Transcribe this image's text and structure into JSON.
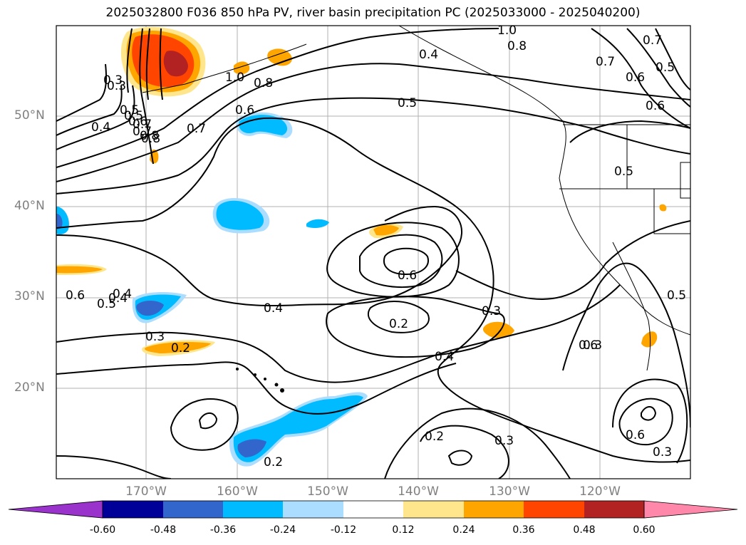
{
  "title": "2025032800 F036 850 hPa PV, river basin precipitation PC (2025033000 - 2025040200)",
  "lat_labels": [
    "50°N",
    "40°N",
    "30°N",
    "20°N"
  ],
  "lon_labels": [
    "170°W",
    "160°W",
    "150°W",
    "140°W",
    "130°W",
    "120°W"
  ],
  "contour_labels": [
    "1.0",
    "0.8",
    "0.7",
    "0.5",
    "0.4",
    "0.3",
    "0.4",
    "0.5",
    "0.6",
    "0.7",
    "0.8",
    "1.0",
    "0.8",
    "0.6",
    "0.7",
    "0.5",
    "0.6",
    "0.7",
    "0.6",
    "0.5",
    "0.4",
    "0.3",
    "0.4",
    "0.2",
    "0.6",
    "0.3",
    "0.4",
    "0.6",
    "0.5",
    "0.3",
    "0.2",
    "0.2",
    "0.3",
    "0.2",
    "0.6",
    "0.3",
    "0.6",
    "0.5",
    "0.4",
    "0.8",
    "0.7",
    "0.5",
    "0.3"
  ],
  "colorbar": {
    "colors": [
      "#9933cc",
      "#000099",
      "#3366cc",
      "#00bbff",
      "#aaddff",
      "#ffffff",
      "#ffe68c",
      "#ffa500",
      "#ff4500",
      "#b22222",
      "#ff88aa"
    ],
    "tick_labels": [
      "-0.60",
      "-0.48",
      "-0.36",
      "-0.24",
      "-0.12",
      "0.12",
      "0.24",
      "0.36",
      "0.48",
      "0.60"
    ]
  }
}
